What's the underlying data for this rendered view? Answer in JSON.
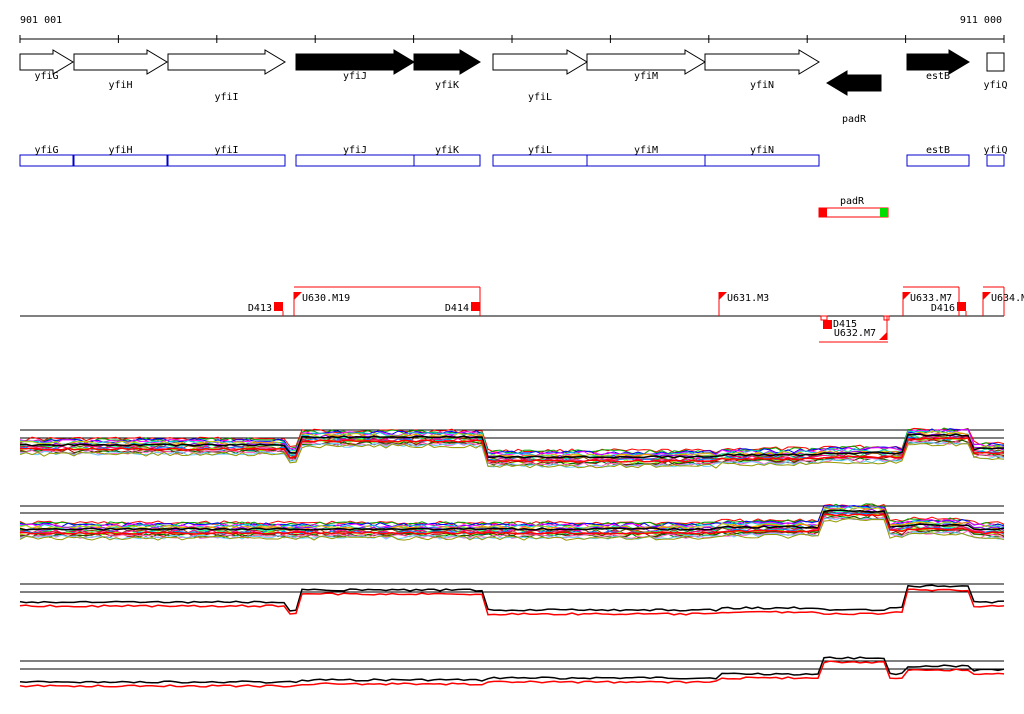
{
  "coords": {
    "start": "901 001",
    "end": "911 000"
  },
  "genes_arrows": [
    {
      "name": "yfiG",
      "strand": "+",
      "filled": false
    },
    {
      "name": "yfiH",
      "strand": "+",
      "filled": false
    },
    {
      "name": "yfiI",
      "strand": "+",
      "filled": false
    },
    {
      "name": "yfiJ",
      "strand": "+",
      "filled": true
    },
    {
      "name": "yfiK",
      "strand": "+",
      "filled": true
    },
    {
      "name": "yfiL",
      "strand": "+",
      "filled": false
    },
    {
      "name": "yfiM",
      "strand": "+",
      "filled": false
    },
    {
      "name": "yfiN",
      "strand": "+",
      "filled": false
    },
    {
      "name": "padR",
      "strand": "-",
      "filled": true
    },
    {
      "name": "estB",
      "strand": "+",
      "filled": true
    },
    {
      "name": "yfiQ",
      "strand": "+",
      "filled": false
    }
  ],
  "genes_boxes": [
    {
      "name": "yfiG",
      "color": "#0000cc"
    },
    {
      "name": "yfiH",
      "color": "#0000cc"
    },
    {
      "name": "yfiI",
      "color": "#0000cc"
    },
    {
      "name": "yfiJ",
      "color": "#0000cc"
    },
    {
      "name": "yfiK",
      "color": "#0000cc"
    },
    {
      "name": "yfiL",
      "color": "#0000cc"
    },
    {
      "name": "yfiM",
      "color": "#0000cc"
    },
    {
      "name": "yfiN",
      "color": "#0000cc"
    },
    {
      "name": "estB",
      "color": "#0000cc"
    },
    {
      "name": "yfiQ",
      "color": "#0000cc"
    }
  ],
  "padr_box": {
    "name": "padR",
    "frame_color": "#ff0000",
    "left_color": "#ff0000",
    "right_color": "#00dd00"
  },
  "features": [
    {
      "label": "D413",
      "type": "downstream"
    },
    {
      "label": "U630.M19",
      "type": "upstream"
    },
    {
      "label": "D414",
      "type": "downstream"
    },
    {
      "label": "U631.M3",
      "type": "upstream"
    },
    {
      "label": "U633.M7",
      "type": "upstream"
    },
    {
      "label": "D416",
      "type": "downstream"
    },
    {
      "label": "U634.M",
      "type": "upstream"
    },
    {
      "label": "D415",
      "type": "downstream"
    },
    {
      "label": "U632.M7",
      "type": "upstream"
    }
  ],
  "feature_color": "#ff0000",
  "palette": [
    "#ff0000",
    "#00aa00",
    "#0000ff",
    "#ff00ff",
    "#00cccc",
    "#cccc00",
    "#ff8800",
    "#8800ff",
    "#00ff88",
    "#884400",
    "#ff0088",
    "#0088ff",
    "#88ff00",
    "#aa0000",
    "#006600",
    "#ff66cc",
    "#66ccff",
    "#999900"
  ]
}
